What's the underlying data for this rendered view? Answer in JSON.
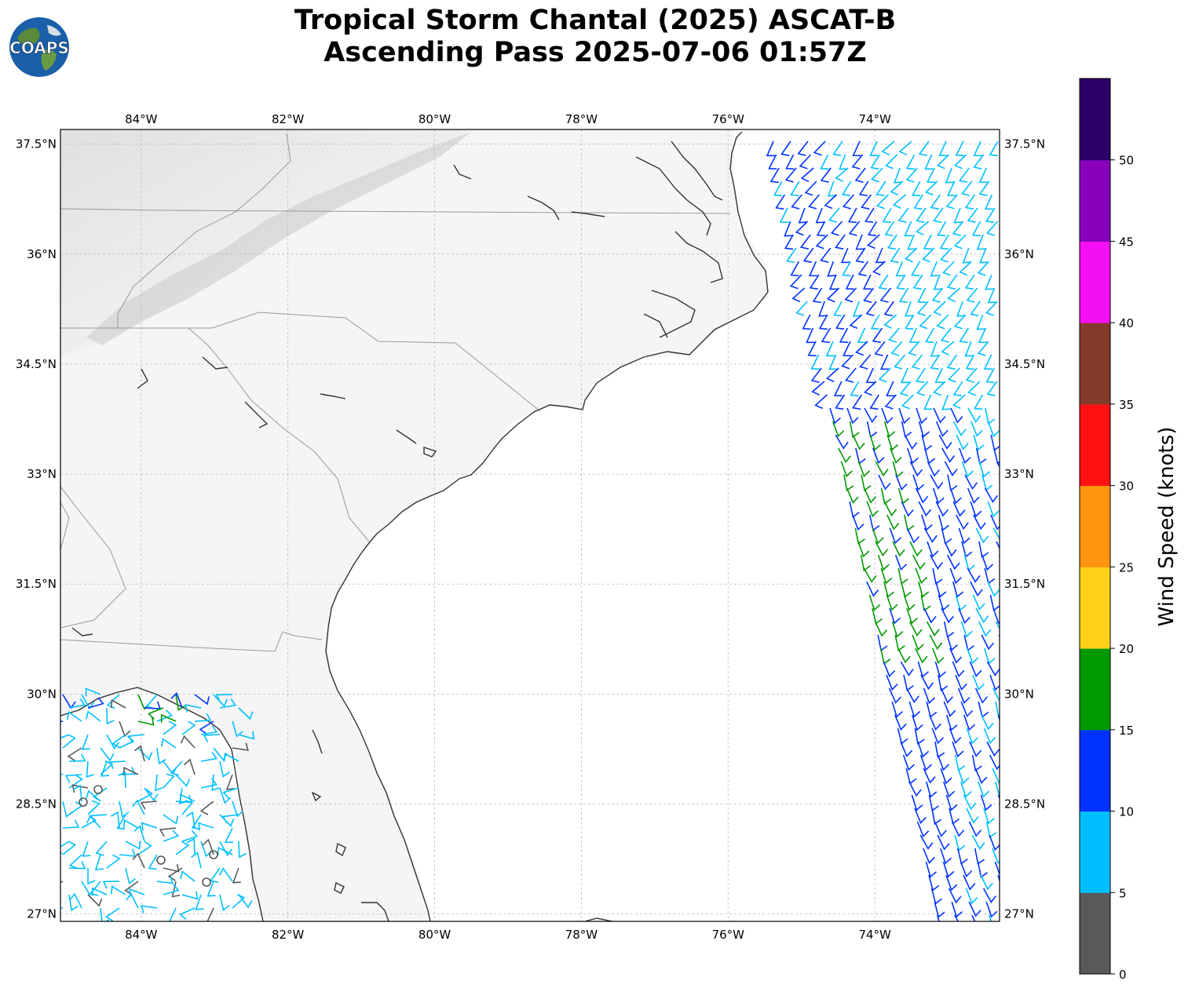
{
  "title": {
    "line1": "Tropical Storm Chantal (2025) ASCAT-B",
    "line2": "Ascending Pass 2025-07-06 01:57Z"
  },
  "logo": {
    "text": "COAPS",
    "icon": "coaps-globe-logo"
  },
  "map": {
    "longitude_range": [
      -85.1,
      -72.3
    ],
    "latitude_range": [
      26.9,
      37.7
    ],
    "gridlines": true,
    "lon_ticks": [
      {
        "value": -84,
        "label": "84°W"
      },
      {
        "value": -82,
        "label": "82°W"
      },
      {
        "value": -80,
        "label": "80°W"
      },
      {
        "value": -78,
        "label": "78°W"
      },
      {
        "value": -76,
        "label": "76°W"
      },
      {
        "value": -74,
        "label": "74°W"
      }
    ],
    "lat_ticks": [
      {
        "value": 37.5,
        "label": "37.5°N"
      },
      {
        "value": 36,
        "label": "36°N"
      },
      {
        "value": 34.5,
        "label": "34.5°N"
      },
      {
        "value": 33,
        "label": "33°N"
      },
      {
        "value": 31.5,
        "label": "31.5°N"
      },
      {
        "value": 30,
        "label": "30°N"
      },
      {
        "value": 28.5,
        "label": "28.5°N"
      },
      {
        "value": 27,
        "label": "27°N"
      }
    ],
    "land_color": "#f4f4f4",
    "ocean_color": "#ffffff",
    "coast_color": "#333333",
    "border_color": "#999999"
  },
  "colorbar": {
    "label": "Wind Speed (knots)",
    "ticks": [
      "0",
      "5",
      "10",
      "15",
      "20",
      "25",
      "30",
      "35",
      "40",
      "45",
      "50"
    ],
    "bins": [
      {
        "min": 0,
        "max": 5,
        "color": "#595959"
      },
      {
        "min": 5,
        "max": 10,
        "color": "#00bfff"
      },
      {
        "min": 10,
        "max": 15,
        "color": "#0033ff"
      },
      {
        "min": 15,
        "max": 20,
        "color": "#009900"
      },
      {
        "min": 20,
        "max": 25,
        "color": "#ffd11a"
      },
      {
        "min": 25,
        "max": 30,
        "color": "#ff9411"
      },
      {
        "min": 30,
        "max": 35,
        "color": "#ff1111"
      },
      {
        "min": 35,
        "max": 40,
        "color": "#823a2a"
      },
      {
        "min": 40,
        "max": 45,
        "color": "#f40ff4"
      },
      {
        "min": 45,
        "max": 50,
        "color": "#8800bb"
      },
      {
        "min": 50,
        "max": 55,
        "color": "#2b0066"
      }
    ]
  },
  "wind_swaths": [
    {
      "name": "east-swath",
      "lon_range": [
        -75.4,
        -72.3
      ],
      "lat_range": [
        26.9,
        37.7
      ]
    },
    {
      "name": "west-swath",
      "lon_range": [
        -85.1,
        -82.4
      ],
      "lat_range": [
        26.9,
        30.1
      ]
    }
  ]
}
